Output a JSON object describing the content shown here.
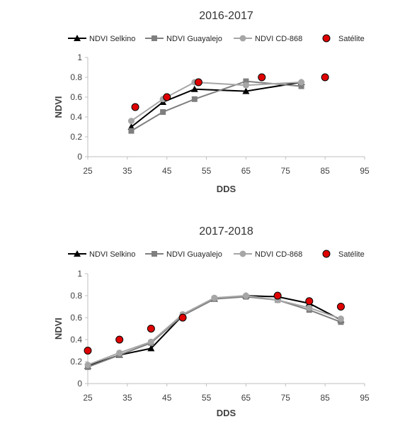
{
  "chart_data": [
    {
      "type": "line",
      "title": "2016-2017",
      "xlabel": "DDS",
      "ylabel": "NDVI",
      "xlim": [
        25,
        95
      ],
      "ylim": [
        0,
        1
      ],
      "xticks": [
        25,
        35,
        45,
        55,
        65,
        75,
        85,
        95
      ],
      "yticks": [
        0,
        0.2,
        0.4,
        0.6,
        0.8,
        1
      ],
      "xtick_labels": [
        "25",
        "35",
        "45",
        "55",
        "65",
        "75",
        "85",
        "95"
      ],
      "ytick_labels": [
        "0",
        "0.2",
        "0.4",
        "0.6",
        "0.8",
        "1"
      ],
      "grid": false,
      "legend_position": "top",
      "series": [
        {
          "name": "NDVI Selkino",
          "color": "#000000",
          "marker": "triangle",
          "x": [
            36,
            44,
            52,
            65,
            79
          ],
          "y": [
            0.3,
            0.55,
            0.68,
            0.66,
            0.75
          ]
        },
        {
          "name": "NDVI Guayalejo",
          "color": "#7f7f7f",
          "marker": "square",
          "x": [
            36,
            44,
            52,
            65,
            79
          ],
          "y": [
            0.26,
            0.45,
            0.58,
            0.76,
            0.71
          ]
        },
        {
          "name": "NDVI CD-868",
          "color": "#a6a6a6",
          "marker": "circle",
          "x": [
            36,
            44,
            52,
            65,
            79
          ],
          "y": [
            0.36,
            0.58,
            0.75,
            0.72,
            0.75
          ]
        },
        {
          "name": "Satélite",
          "color": "#c00000",
          "marker": "circle-outlined",
          "scatter": true,
          "x": [
            37,
            45,
            53,
            69,
            85
          ],
          "y": [
            0.5,
            0.6,
            0.75,
            0.8,
            0.8
          ]
        }
      ]
    },
    {
      "type": "line",
      "title": "2017-2018",
      "xlabel": "DDS",
      "ylabel": "NDVI",
      "xlim": [
        25,
        95
      ],
      "ylim": [
        0,
        1
      ],
      "xticks": [
        25,
        35,
        45,
        55,
        65,
        75,
        85,
        95
      ],
      "yticks": [
        0,
        0.2,
        0.4,
        0.6,
        0.8,
        1
      ],
      "xtick_labels": [
        "25",
        "35",
        "45",
        "55",
        "65",
        "75",
        "85",
        "95"
      ],
      "ytick_labels": [
        "0",
        "0.2",
        "0.4",
        "0.6",
        "0.8",
        "1"
      ],
      "grid": false,
      "legend_position": "top",
      "series": [
        {
          "name": "NDVI Selkino",
          "color": "#000000",
          "marker": "triangle",
          "x": [
            25,
            33,
            41,
            49,
            57,
            65,
            73,
            81,
            89
          ],
          "y": [
            0.16,
            0.26,
            0.32,
            0.62,
            0.77,
            0.8,
            0.79,
            0.73,
            0.58
          ]
        },
        {
          "name": "NDVI Guayalejo",
          "color": "#7f7f7f",
          "marker": "square",
          "x": [
            25,
            33,
            41,
            49,
            57,
            65,
            73,
            81,
            89
          ],
          "y": [
            0.15,
            0.26,
            0.37,
            0.62,
            0.77,
            0.79,
            0.76,
            0.67,
            0.56
          ]
        },
        {
          "name": "NDVI CD-868",
          "color": "#a6a6a6",
          "marker": "circle",
          "x": [
            25,
            33,
            41,
            49,
            57,
            65,
            73,
            81,
            89
          ],
          "y": [
            0.17,
            0.28,
            0.38,
            0.63,
            0.78,
            0.8,
            0.76,
            0.69,
            0.59
          ]
        },
        {
          "name": "Satélite",
          "color": "#c00000",
          "marker": "circle-outlined",
          "scatter": true,
          "x": [
            25,
            33,
            41,
            49,
            73,
            81,
            89
          ],
          "y": [
            0.3,
            0.4,
            0.5,
            0.6,
            0.8,
            0.75,
            0.7
          ]
        }
      ]
    }
  ]
}
